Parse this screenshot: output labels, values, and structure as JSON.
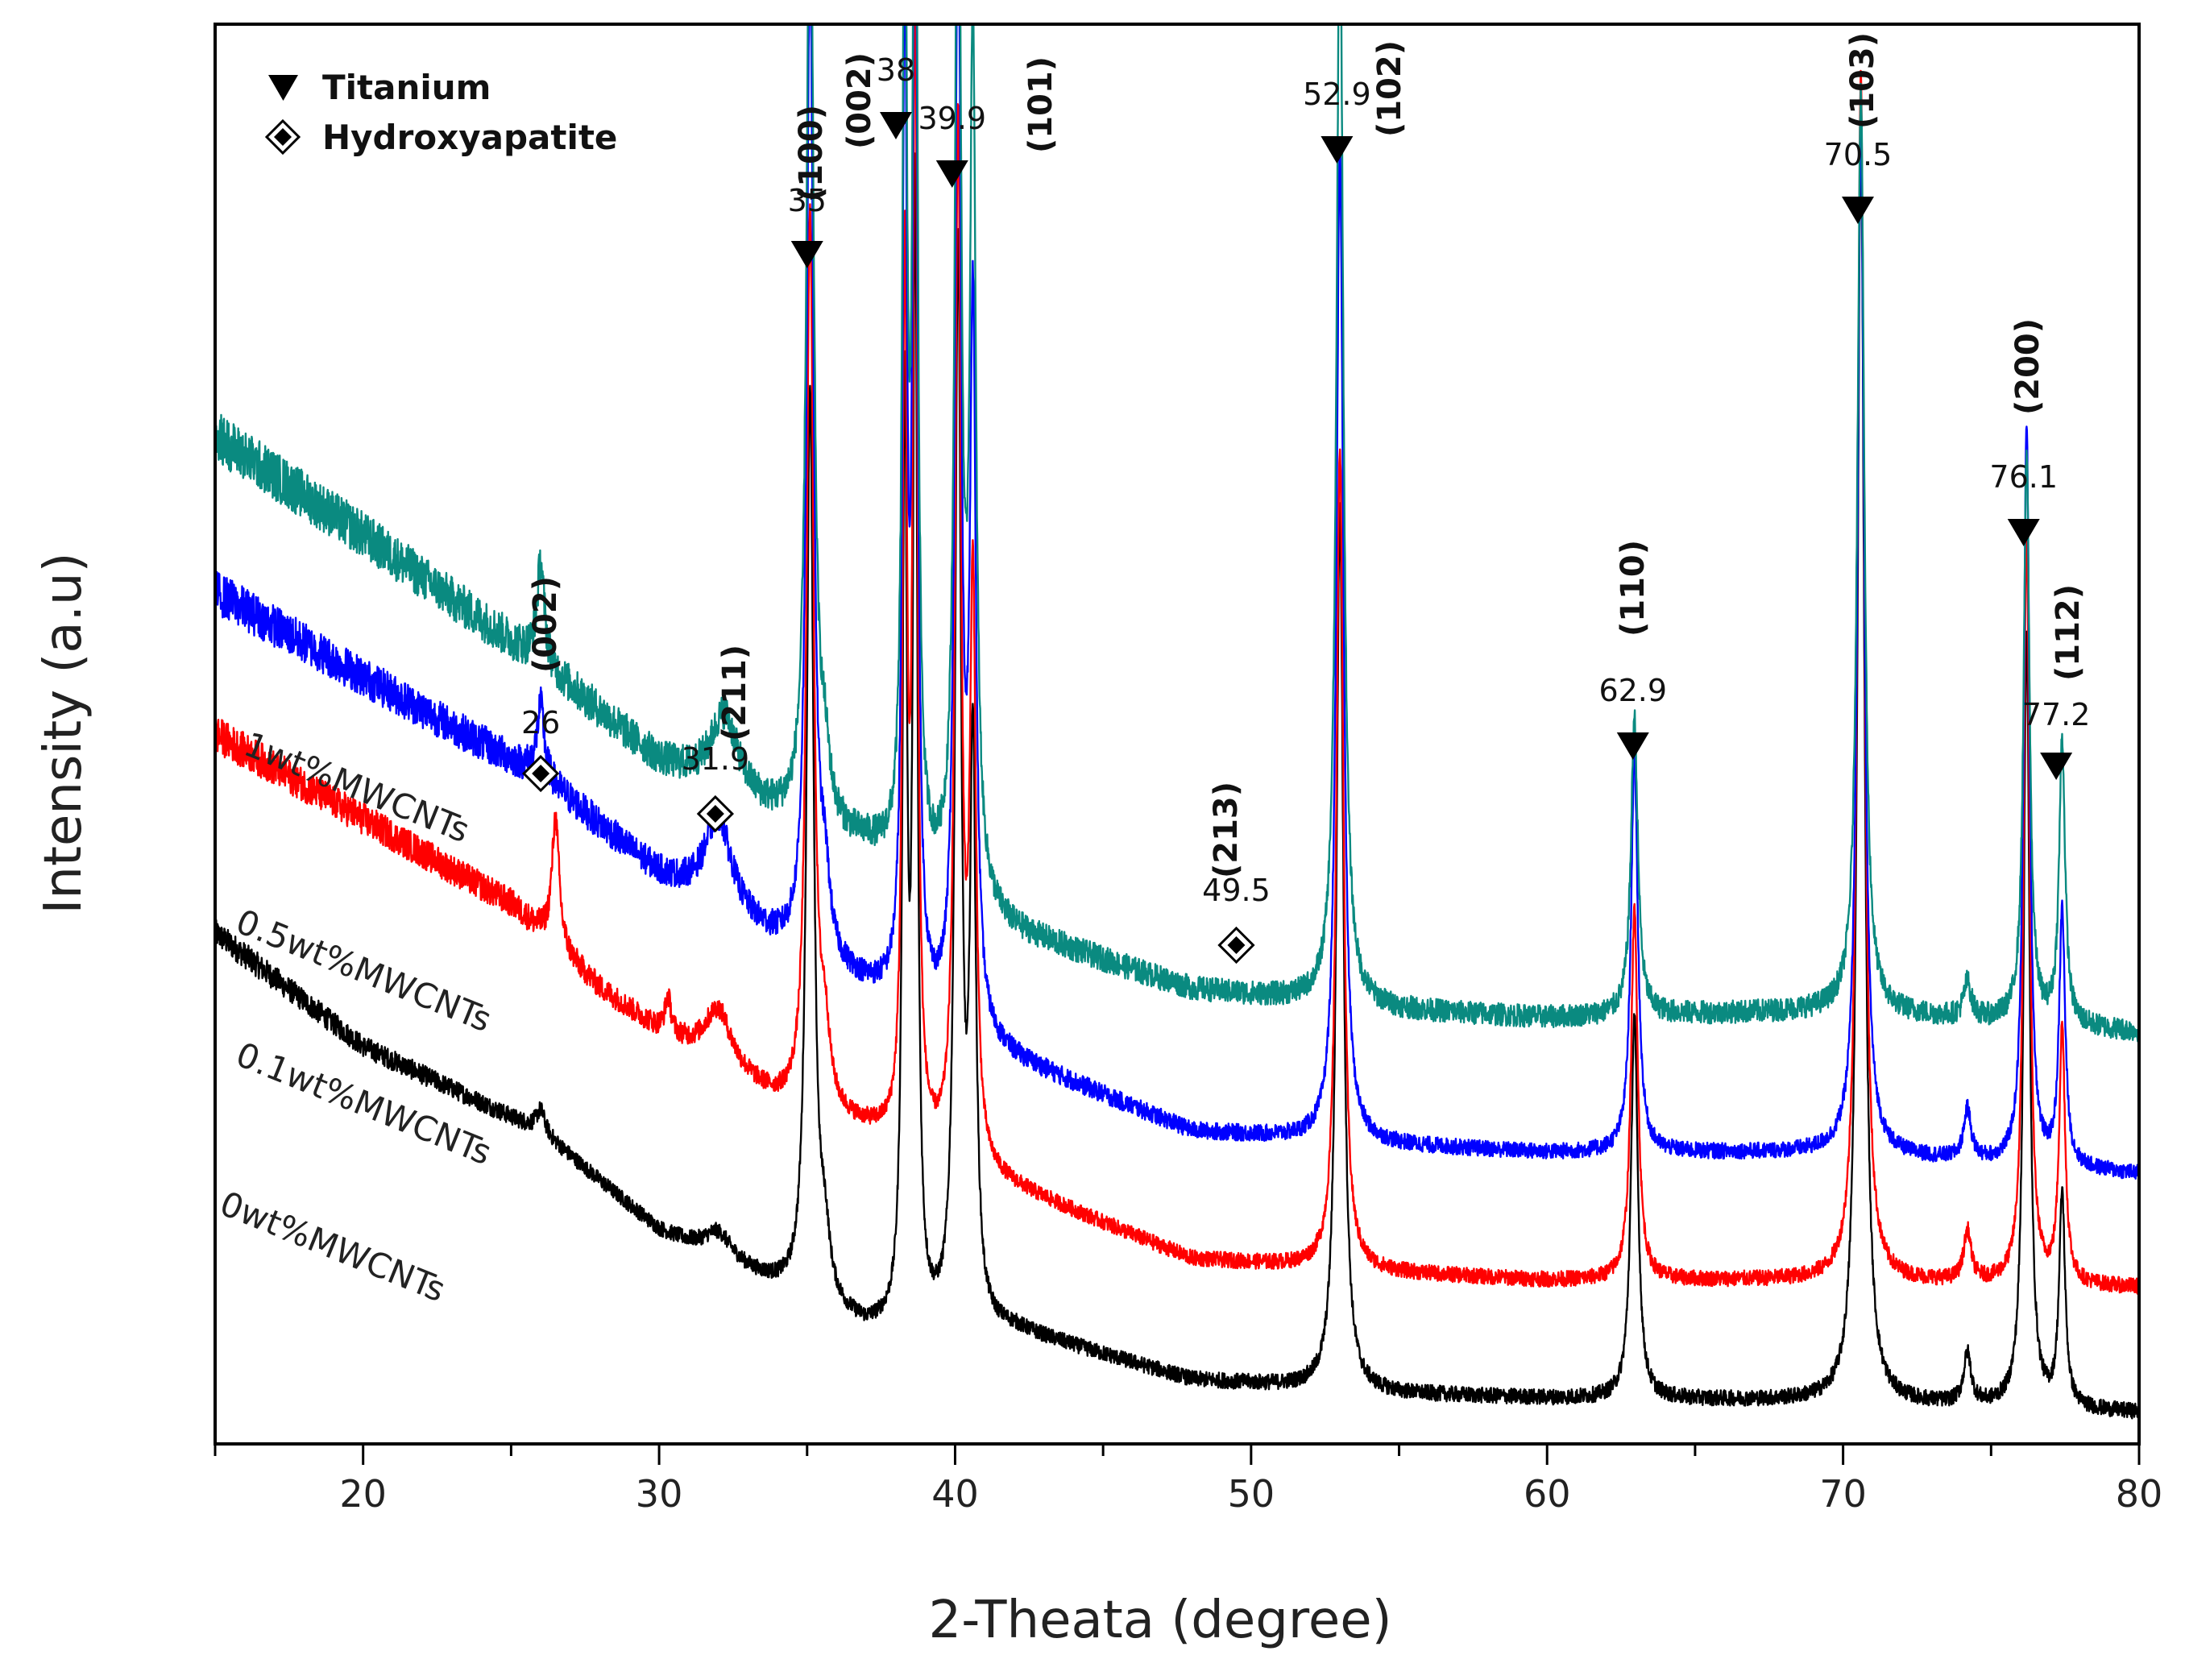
{
  "chart_data": {
    "type": "line",
    "title": "",
    "xlabel": "2-Theata (degree)",
    "ylabel": "Intensity (a.u)",
    "xlim": [
      15,
      80
    ],
    "ylim": [
      0,
      100
    ],
    "xticks": [
      20,
      30,
      40,
      50,
      60,
      70,
      80
    ],
    "legend": [
      {
        "symbol": "triangle-down",
        "label": "Titanium"
      },
      {
        "symbol": "diamond",
        "label": "Hydroxyapatite"
      }
    ],
    "series": [
      {
        "name": "0wt%MWCNTs",
        "color": "#000000",
        "baseline": [
          [
            15,
            36
          ],
          [
            20,
            28
          ],
          [
            26,
            22
          ],
          [
            30,
            15
          ],
          [
            34,
            11
          ],
          [
            37,
            8
          ],
          [
            42,
            8
          ],
          [
            48,
            4.5
          ],
          [
            55,
            3.5
          ],
          [
            60,
            3.2
          ],
          [
            70,
            3
          ],
          [
            80,
            2.2
          ]
        ],
        "peaks": [
          [
            26,
            1.5,
            0.18
          ],
          [
            32,
            1.8,
            0.55
          ],
          [
            35.1,
            64,
            0.14
          ],
          [
            35.6,
            4,
            0.2
          ],
          [
            38.3,
            64,
            0.09
          ],
          [
            38.65,
            78,
            0.09
          ],
          [
            40.1,
            75,
            0.12
          ],
          [
            40.6,
            40,
            0.12
          ],
          [
            53.0,
            62,
            0.14
          ],
          [
            62.95,
            27,
            0.14
          ],
          [
            70.6,
            90,
            0.14
          ],
          [
            74.2,
            3.5,
            0.15
          ],
          [
            76.2,
            55,
            0.12
          ],
          [
            77.4,
            15,
            0.12
          ]
        ]
      },
      {
        "name": "0.1wt%MWCNTs",
        "color": "#ff0000",
        "baseline": [
          [
            15,
            50
          ],
          [
            20,
            44
          ],
          [
            25,
            38
          ],
          [
            28,
            32
          ],
          [
            30,
            29
          ],
          [
            34,
            24
          ],
          [
            37,
            22
          ],
          [
            42,
            18
          ],
          [
            48,
            13
          ],
          [
            55,
            12
          ],
          [
            60,
            11.5
          ],
          [
            70,
            11.5
          ],
          [
            80,
            11
          ]
        ],
        "peaks": [
          [
            26.5,
            9,
            0.15
          ],
          [
            30.3,
            2.5,
            0.12
          ],
          [
            32,
            4,
            0.55
          ],
          [
            35.1,
            63,
            0.14
          ],
          [
            35.6,
            5,
            0.2
          ],
          [
            38.3,
            60,
            0.09
          ],
          [
            38.65,
            80,
            0.09
          ],
          [
            40.1,
            72,
            0.12
          ],
          [
            40.6,
            40,
            0.12
          ],
          [
            53.0,
            58,
            0.14
          ],
          [
            62.95,
            26,
            0.14
          ],
          [
            70.6,
            85,
            0.14
          ],
          [
            74.2,
            3.5,
            0.15
          ],
          [
            76.2,
            53,
            0.12
          ],
          [
            77.4,
            18,
            0.12
          ]
        ]
      },
      {
        "name": "0.5wt%MWCNTs",
        "color": "#0000ff",
        "baseline": [
          [
            15,
            60
          ],
          [
            20,
            54
          ],
          [
            26,
            47
          ],
          [
            30,
            40
          ],
          [
            34,
            35
          ],
          [
            37,
            32
          ],
          [
            42,
            27
          ],
          [
            48,
            22
          ],
          [
            55,
            21
          ],
          [
            60,
            20.5
          ],
          [
            70,
            20.5
          ],
          [
            80,
            19
          ]
        ],
        "peaks": [
          [
            26,
            5,
            0.15
          ],
          [
            32,
            6.5,
            0.55
          ],
          [
            35.1,
            70,
            0.14
          ],
          [
            35.6,
            5,
            0.2
          ],
          [
            38.3,
            70,
            0.09
          ],
          [
            38.65,
            90,
            0.09
          ],
          [
            40.1,
            80,
            0.12
          ],
          [
            40.6,
            50,
            0.12
          ],
          [
            53.0,
            70,
            0.14
          ],
          [
            62.95,
            28,
            0.14
          ],
          [
            70.6,
            72,
            0.14
          ],
          [
            74.2,
            3.5,
            0.15
          ],
          [
            76.2,
            52,
            0.12
          ],
          [
            77.4,
            18,
            0.12
          ]
        ]
      },
      {
        "name": "1wt%MWCNTs",
        "color": "#0a8a80",
        "baseline": [
          [
            15,
            71
          ],
          [
            20,
            64
          ],
          [
            26,
            55
          ],
          [
            30,
            48
          ],
          [
            34,
            44
          ],
          [
            37,
            42
          ],
          [
            42,
            36
          ],
          [
            48,
            32
          ],
          [
            55,
            30.5
          ],
          [
            60,
            30
          ],
          [
            70,
            30.5
          ],
          [
            80,
            29
          ]
        ],
        "peaks": [
          [
            26,
            7,
            0.15
          ],
          [
            32.2,
            5.5,
            0.55
          ],
          [
            35.1,
            72,
            0.14
          ],
          [
            35.6,
            4,
            0.2
          ],
          [
            38.3,
            72,
            0.09
          ],
          [
            38.65,
            90,
            0.09
          ],
          [
            40.1,
            82,
            0.12
          ],
          [
            40.6,
            60,
            0.12
          ],
          [
            53.0,
            78,
            0.14
          ],
          [
            62.95,
            21,
            0.14
          ],
          [
            70.6,
            65,
            0.14
          ],
          [
            74.2,
            2.5,
            0.15
          ],
          [
            76.2,
            40,
            0.12
          ],
          [
            77.4,
            20,
            0.12
          ]
        ]
      }
    ],
    "annotations": [
      {
        "x": 26,
        "label": "26",
        "marker": "diamond",
        "hkl": "(002)"
      },
      {
        "x": 31.9,
        "label": "31.9",
        "marker": "diamond",
        "hkl": "(211)"
      },
      {
        "x": 35,
        "label": "35",
        "marker": "triangle-down",
        "hkl": "(100)"
      },
      {
        "x": 38,
        "label": "38",
        "marker": "triangle-down",
        "hkl": "(002)"
      },
      {
        "x": 39.9,
        "label": "39.9",
        "marker": "triangle-down",
        "hkl": "(101)"
      },
      {
        "x": 49.5,
        "label": "49.5",
        "marker": "diamond",
        "hkl": "(213)"
      },
      {
        "x": 52.9,
        "label": "52.9",
        "marker": "triangle-down",
        "hkl": "(102)"
      },
      {
        "x": 62.9,
        "label": "62.9",
        "marker": "triangle-down",
        "hkl": "(110)"
      },
      {
        "x": 70.5,
        "label": "70.5",
        "marker": "triangle-down",
        "hkl": "(103)"
      },
      {
        "x": 76.1,
        "label": "76.1",
        "marker": "triangle-down",
        "hkl": "(200)"
      },
      {
        "x": 77.2,
        "label": "77.2",
        "marker": "triangle-down",
        "hkl": "(112)"
      }
    ]
  }
}
